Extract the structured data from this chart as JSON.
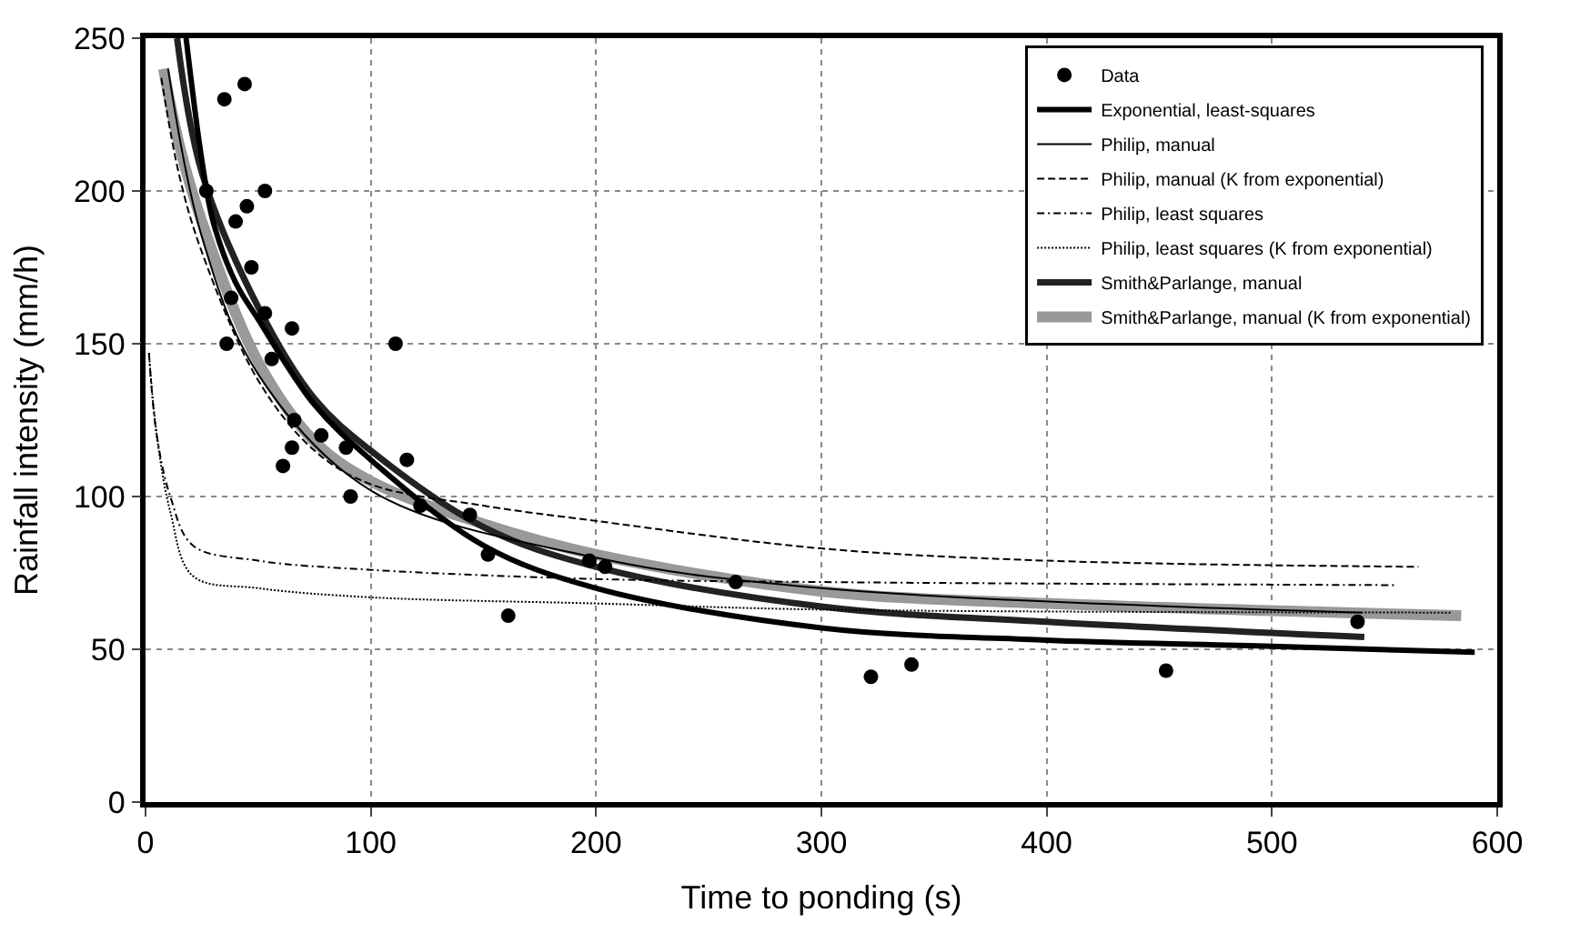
{
  "chart_data": {
    "type": "line",
    "xlabel": "Time to ponding (s)",
    "ylabel": "Rainfall intensity (mm/h)",
    "xlim": [
      0,
      600
    ],
    "xticks": [
      0,
      100,
      200,
      300,
      400,
      500,
      600
    ],
    "ylim": [
      0,
      250
    ],
    "yticks": [
      0,
      50,
      100,
      150,
      200,
      250
    ],
    "grid": true,
    "legend": "top right",
    "series": [
      {
        "name": "Data",
        "type": "scatter",
        "marker": "circle",
        "color": "#000000",
        "x": [
          35,
          44,
          27,
          53,
          45,
          40,
          47,
          38,
          53,
          65,
          36,
          56,
          66,
          78,
          65,
          61,
          89,
          91,
          111,
          116,
          122,
          144,
          152,
          161,
          197,
          204,
          262,
          322,
          340,
          453,
          538
        ],
        "values": [
          230,
          235,
          200,
          200,
          195,
          190,
          175,
          165,
          160,
          155,
          150,
          145,
          125,
          120,
          116,
          110,
          116,
          100,
          150,
          112,
          97,
          94,
          81,
          61,
          79,
          77,
          72,
          41,
          45,
          43,
          59
        ]
      },
      {
        "name": "Exponential, least-squares",
        "color": "#000000",
        "line_style": "solid",
        "marker": "none",
        "x": [
          18,
          25,
          30,
          40,
          50,
          75,
          100,
          150,
          200,
          300,
          400,
          500,
          590
        ],
        "values": [
          250,
          210,
          190,
          170,
          158,
          130,
          112,
          84,
          70,
          57,
          53,
          51,
          49
        ]
      },
      {
        "name": "Philip, manual",
        "color": "#000000",
        "line_style": "solid",
        "marker": "none",
        "x": [
          10,
          25,
          50,
          100,
          200,
          300,
          540
        ],
        "values": [
          240,
          185,
          140,
          102,
          80,
          70,
          62
        ]
      },
      {
        "name": "Philip, manual (K from exponential)",
        "color": "#000000",
        "line_style": "dashed",
        "marker": "none",
        "x": [
          7,
          15,
          25,
          50,
          75,
          100,
          150,
          200,
          300,
          400,
          565
        ],
        "values": [
          237,
          205,
          180,
          138,
          115,
          104,
          97,
          92,
          83,
          79,
          77
        ]
      },
      {
        "name": "Philip, least squares",
        "color": "#000000",
        "line_style": "dashdot",
        "marker": "none",
        "x": [
          1.5,
          5,
          11,
          21,
          50,
          100,
          200,
          300,
          555
        ],
        "values": [
          147,
          120,
          100,
          84,
          79,
          76,
          73,
          72,
          71
        ]
      },
      {
        "name": "Philip, least squares (K from exponential)",
        "color": "#000000",
        "line_style": "dotted",
        "marker": "none",
        "x": [
          1.5,
          5,
          11,
          21,
          50,
          100,
          200,
          300,
          580
        ],
        "values": [
          147,
          120,
          95,
          74,
          70,
          67,
          65,
          63,
          62
        ]
      },
      {
        "name": "Smith&Parlange, manual",
        "color": "#222222",
        "line_style": "solid",
        "marker": "none",
        "x": [
          14,
          25,
          50,
          75,
          100,
          150,
          200,
          300,
          400,
          541
        ],
        "values": [
          250,
          206,
          162,
          132,
          115,
          90,
          77,
          64,
          59,
          54
        ]
      },
      {
        "name": "Smith&Parlange, manual (K from exponential)",
        "color": "#999999",
        "line_style": "solid",
        "marker": "none",
        "x": [
          8,
          15,
          25,
          50,
          75,
          100,
          150,
          200,
          300,
          400,
          584
        ],
        "values": [
          240,
          215,
          190,
          144,
          118,
          105,
          91,
          81,
          69,
          65,
          61
        ]
      }
    ]
  }
}
